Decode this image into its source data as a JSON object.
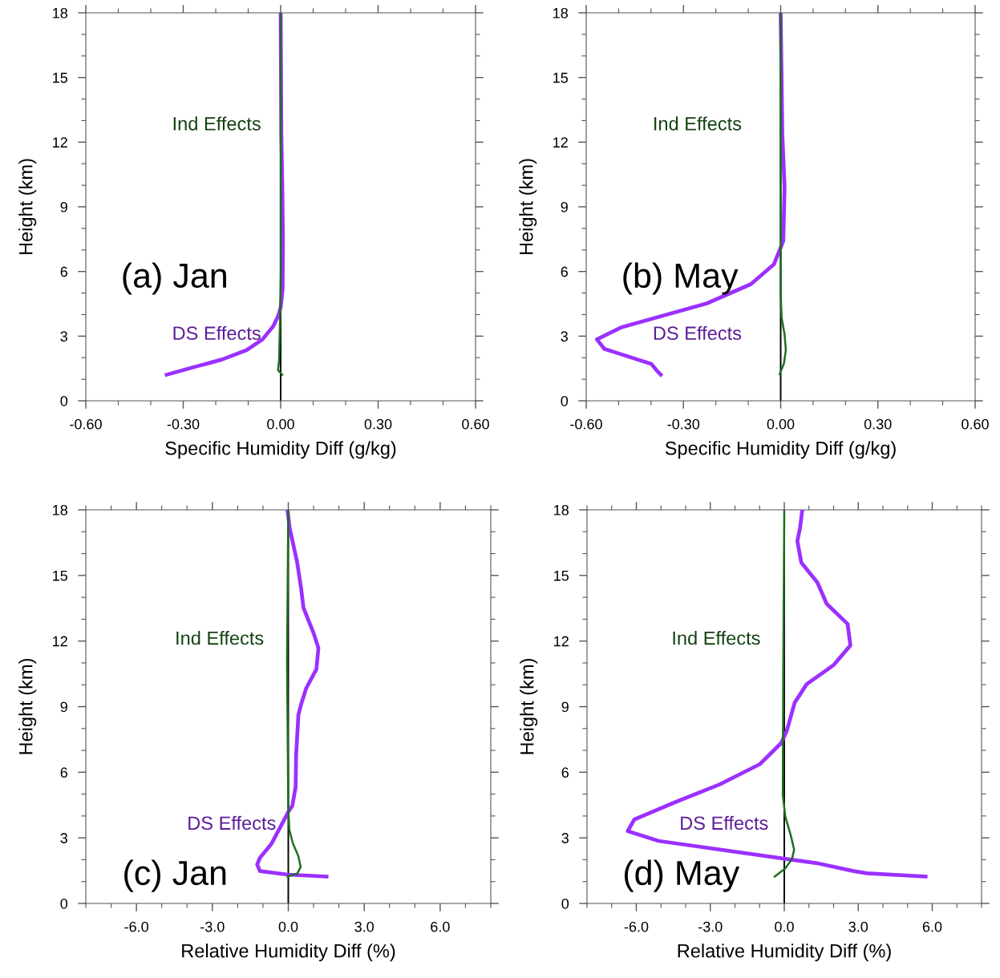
{
  "chart_data": [
    {
      "type": "line",
      "xlabel": "Specific Humidity Diff (g/kg)",
      "ylabel": "Height (km)",
      "annotations": [
        "(a) Jan"
      ],
      "xlim": [
        -0.6,
        0.6
      ],
      "xticks": [
        {
          "value": -0.6,
          "label": "-0.60"
        },
        {
          "value": -0.3,
          "label": "-0.30"
        },
        {
          "value": 0,
          "label": "0.00"
        },
        {
          "value": 0.3,
          "label": "0.30"
        },
        {
          "value": 0.6,
          "label": "0.60"
        }
      ],
      "ylim": [
        0,
        18
      ],
      "yticks": [
        0,
        3,
        6,
        9,
        12,
        15,
        18
      ],
      "grid": false,
      "legend": false,
      "marker": "none",
      "line_style": "solid",
      "ref_lines": [
        {
          "axis": "x",
          "value": 0,
          "color": "#000000"
        }
      ],
      "series": [
        {
          "name": "DS Effects",
          "color": "#9b30ff",
          "x": [
            -0.351,
            -0.27,
            -0.18,
            -0.105,
            -0.056,
            -0.023,
            -0.007,
            0,
            0.006,
            0.007,
            0.005,
            0.002,
            0
          ],
          "values": [
            1.21,
            1.55,
            1.92,
            2.35,
            2.85,
            3.46,
            3.96,
            4.33,
            5.2,
            7.4,
            9.9,
            12.4,
            18
          ]
        },
        {
          "name": "Ind Effects",
          "color": "#1f6e1f",
          "x": [
            0.005,
            -0.008,
            -0.005,
            -0.002,
            0,
            0
          ],
          "values": [
            1.21,
            1.42,
            1.86,
            3.7,
            6,
            18
          ]
        }
      ]
    },
    {
      "type": "line",
      "xlabel": "Specific Humidity Diff (g/kg)",
      "ylabel": "Height (km)",
      "annotations": [
        "(b) May"
      ],
      "xlim": [
        -0.6,
        0.6
      ],
      "xticks": [
        {
          "value": -0.6,
          "label": "-0.60"
        },
        {
          "value": -0.3,
          "label": "-0.30"
        },
        {
          "value": 0,
          "label": "0.00"
        },
        {
          "value": 0.3,
          "label": "0.30"
        },
        {
          "value": 0.6,
          "label": "0.60"
        }
      ],
      "ylim": [
        0,
        18
      ],
      "yticks": [
        0,
        3,
        6,
        9,
        12,
        15,
        18
      ],
      "grid": false,
      "legend": false,
      "marker": "none",
      "line_style": "solid",
      "ref_lines": [
        {
          "axis": "x",
          "value": 0,
          "color": "#000000"
        }
      ],
      "series": [
        {
          "name": "DS Effects",
          "color": "#9b30ff",
          "x": [
            -0.37,
            -0.383,
            -0.399,
            -0.544,
            -0.567,
            -0.493,
            -0.228,
            -0.092,
            -0.021,
            0,
            0.008,
            0.012,
            0.005,
            0
          ],
          "values": [
            1.21,
            1.42,
            1.71,
            2.41,
            2.85,
            3.4,
            4.52,
            5.41,
            6.33,
            7.11,
            7.42,
            9.9,
            12.4,
            18
          ]
        },
        {
          "name": "Ind Effects",
          "color": "#1f6e1f",
          "x": [
            -0.003,
            0.01,
            0.016,
            0.012,
            0.003,
            0,
            0
          ],
          "values": [
            1.24,
            1.73,
            2.35,
            3.09,
            3.84,
            4.95,
            18
          ]
        }
      ]
    },
    {
      "type": "line",
      "xlabel": "Relative Humidity Diff (%)",
      "ylabel": "Height (km)",
      "annotations": [
        "(c) Jan"
      ],
      "xlim": [
        -8,
        8
      ],
      "xticks": [
        {
          "value": -6,
          "label": "-6.0"
        },
        {
          "value": -3,
          "label": "-3.0"
        },
        {
          "value": 0,
          "label": "0.0"
        },
        {
          "value": 3,
          "label": "3.0"
        },
        {
          "value": 6,
          "label": "6.0"
        }
      ],
      "ylim": [
        0,
        18
      ],
      "yticks": [
        0,
        3,
        6,
        9,
        12,
        15,
        18
      ],
      "grid": false,
      "legend": false,
      "marker": "none",
      "line_style": "solid",
      "ref_lines": [
        {
          "axis": "x",
          "value": 0,
          "color": "#000000"
        }
      ],
      "series": [
        {
          "name": "DS Effects",
          "color": "#9b30ff",
          "x": [
            1.51,
            -0.03,
            -1.12,
            -1.23,
            -1.12,
            -0.68,
            -0.2,
            0.02,
            0.16,
            0.29,
            0.31,
            0.4,
            0.51,
            0.71,
            1.11,
            1.19,
            1.0,
            0.6,
            0.51,
            0.35,
            0.05,
            -0.03
          ],
          "values": [
            1.23,
            1.32,
            1.48,
            1.78,
            2.09,
            2.7,
            3.74,
            4.23,
            4.47,
            5.33,
            6.79,
            8.63,
            9.12,
            9.85,
            10.71,
            11.68,
            12.36,
            13.52,
            14.38,
            15.6,
            17.19,
            18
          ]
        },
        {
          "name": "Ind Effects",
          "color": "#1f6e1f",
          "x": [
            -0.03,
            0.35,
            0.49,
            0.4,
            0.18,
            0.04,
            0,
            -0.05,
            0
          ],
          "values": [
            1.23,
            1.36,
            1.66,
            2.15,
            2.76,
            3.37,
            4.35,
            11.07,
            18
          ]
        }
      ]
    },
    {
      "type": "line",
      "xlabel": "Relative Humidity Diff (%)",
      "ylabel": "Height (km)",
      "annotations": [
        "(d) May"
      ],
      "xlim": [
        -8,
        8
      ],
      "xticks": [
        {
          "value": -6,
          "label": "-6.0"
        },
        {
          "value": -3,
          "label": "-3.0"
        },
        {
          "value": 0,
          "label": "0.0"
        },
        {
          "value": 3,
          "label": "3.0"
        },
        {
          "value": 6,
          "label": "6.0"
        }
      ],
      "ylim": [
        0,
        18
      ],
      "yticks": [
        0,
        3,
        6,
        9,
        12,
        15,
        18
      ],
      "grid": false,
      "legend": false,
      "marker": "none",
      "line_style": "solid",
      "ref_lines": [
        {
          "axis": "x",
          "value": 0,
          "color": "#000000"
        }
      ],
      "series": [
        {
          "name": "DS Effects",
          "color": "#9b30ff",
          "x": [
            5.73,
            3.35,
            2.81,
            1.29,
            -0.01,
            -5.1,
            -6.35,
            -6.08,
            -4.45,
            -2.61,
            -0.99,
            -0.12,
            0.1,
            0.42,
            0.91,
            1.99,
            2.68,
            2.57,
            1.72,
            1.34,
            0.69,
            0.53,
            0.64,
            0.73
          ],
          "values": [
            1.23,
            1.38,
            1.48,
            1.85,
            2.05,
            2.86,
            3.31,
            3.84,
            4.62,
            5.45,
            6.37,
            7.34,
            7.89,
            9.18,
            10.03,
            10.89,
            11.8,
            12.78,
            13.7,
            14.68,
            15.59,
            16.57,
            17.18,
            18
          ]
        },
        {
          "name": "Ind Effects",
          "color": "#1f6e1f",
          "x": [
            -0.39,
            0.04,
            0.31,
            0.4,
            0.26,
            0.04,
            -0.06,
            -0.04,
            0
          ],
          "values": [
            1.23,
            1.6,
            2.03,
            2.46,
            3.13,
            3.98,
            4.96,
            11.07,
            18
          ]
        }
      ]
    }
  ]
}
